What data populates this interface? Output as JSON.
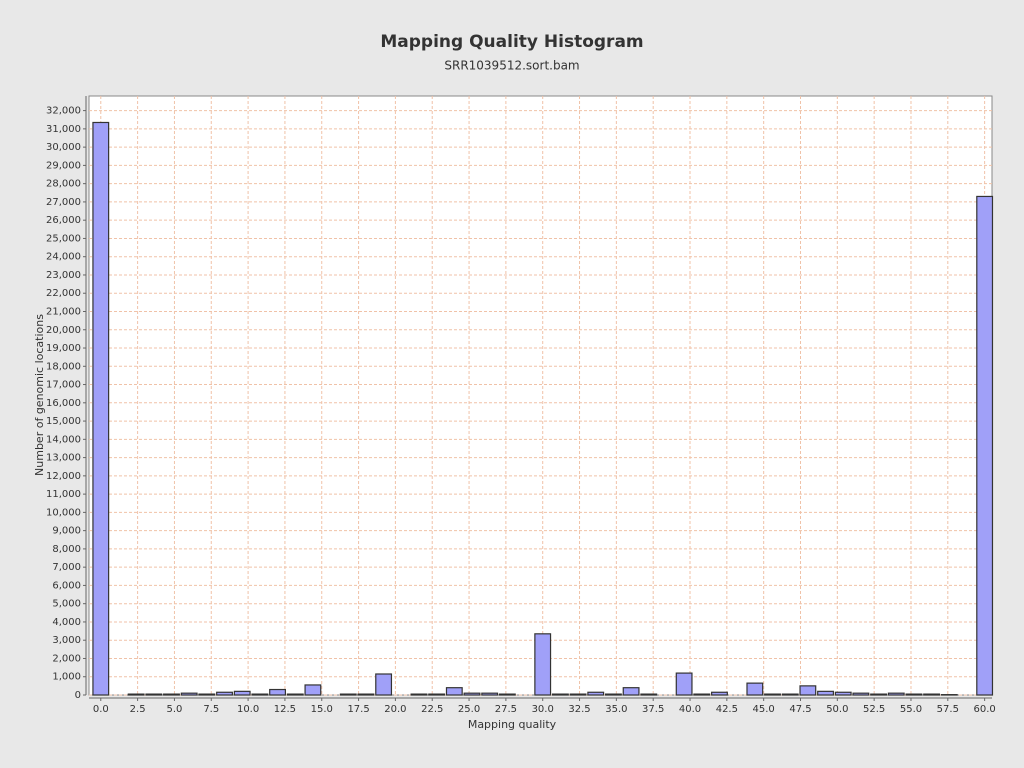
{
  "chart_data": {
    "type": "histogram",
    "title": "Mapping Quality Histogram",
    "subtitle": "SRR1039512.sort.bam",
    "x_label": "Mapping quality",
    "y_label": "Number of genomic locations",
    "color": "#a0a0f8",
    "grid": true,
    "bins": [
      -0.6,
      0.6,
      1.8,
      3.0,
      4.2,
      5.4,
      6.6,
      7.8,
      9.0,
      10.2,
      11.4,
      12.6,
      13.8,
      15.0,
      16.2,
      17.4,
      18.6,
      19.8,
      21.0,
      22.2,
      23.4,
      24.6,
      25.8,
      27.0,
      28.2,
      29.4,
      30.6,
      31.8,
      33.0,
      34.2,
      35.4,
      36.6,
      37.8,
      39.0,
      40.2,
      41.4,
      42.6,
      43.8,
      45.0,
      46.2,
      47.4,
      48.6,
      49.8,
      51.0,
      52.2,
      53.4,
      54.6,
      55.8,
      57.0,
      58.2,
      59.4,
      60.6
    ],
    "values": [
      31350,
      0,
      50,
      50,
      50,
      100,
      50,
      150,
      200,
      50,
      300,
      50,
      550,
      0,
      50,
      50,
      1150,
      0,
      50,
      50,
      400,
      100,
      100,
      50,
      0,
      3350,
      50,
      50,
      150,
      50,
      400,
      50,
      0,
      1200,
      50,
      150,
      0,
      650,
      50,
      50,
      500,
      200,
      150,
      100,
      50,
      100,
      50,
      50,
      20,
      0,
      27300
    ],
    "xlim": [
      -0.8,
      60.5
    ],
    "xticks": [
      {
        "value": 0,
        "label": "0.0"
      },
      2.5,
      {
        "value": 5,
        "label": "5.0"
      },
      7.5,
      {
        "value": 10,
        "label": "10.0"
      },
      12.5,
      {
        "value": 15,
        "label": "15.0"
      },
      17.5,
      {
        "value": 20,
        "label": "20.0"
      },
      22.5,
      {
        "value": 25,
        "label": "25.0"
      },
      27.5,
      {
        "value": 30,
        "label": "30.0"
      },
      32.5,
      {
        "value": 35,
        "label": "35.0"
      },
      37.5,
      {
        "value": 40,
        "label": "40.0"
      },
      42.5,
      {
        "value": 45,
        "label": "45.0"
      },
      47.5,
      {
        "value": 50,
        "label": "50.0"
      },
      52.5,
      {
        "value": 55,
        "label": "55.0"
      },
      57.5,
      {
        "value": 60,
        "label": "60.0"
      }
    ],
    "ylim": [
      0,
      32800
    ],
    "yticks": [
      0,
      {
        "value": 1000,
        "label": "1,000"
      },
      {
        "value": 2000,
        "label": "2,000"
      },
      {
        "value": 3000,
        "label": "3,000"
      },
      {
        "value": 4000,
        "label": "4,000"
      },
      {
        "value": 5000,
        "label": "5,000"
      },
      {
        "value": 6000,
        "label": "6,000"
      },
      {
        "value": 7000,
        "label": "7,000"
      },
      {
        "value": 8000,
        "label": "8,000"
      },
      {
        "value": 9000,
        "label": "9,000"
      },
      {
        "value": 10000,
        "label": "10,000"
      },
      {
        "value": 11000,
        "label": "11,000"
      },
      {
        "value": 12000,
        "label": "12,000"
      },
      {
        "value": 13000,
        "label": "13,000"
      },
      {
        "value": 14000,
        "label": "14,000"
      },
      {
        "value": 15000,
        "label": "15,000"
      },
      {
        "value": 16000,
        "label": "16,000"
      },
      {
        "value": 17000,
        "label": "17,000"
      },
      {
        "value": 18000,
        "label": "18,000"
      },
      {
        "value": 19000,
        "label": "19,000"
      },
      {
        "value": 20000,
        "label": "20,000"
      },
      {
        "value": 21000,
        "label": "21,000"
      },
      {
        "value": 22000,
        "label": "22,000"
      },
      {
        "value": 23000,
        "label": "23,000"
      },
      {
        "value": 24000,
        "label": "24,000"
      },
      {
        "value": 25000,
        "label": "25,000"
      },
      {
        "value": 26000,
        "label": "26,000"
      },
      {
        "value": 27000,
        "label": "27,000"
      },
      {
        "value": 28000,
        "label": "28,000"
      },
      {
        "value": 29000,
        "label": "29,000"
      },
      {
        "value": 30000,
        "label": "30,000"
      },
      {
        "value": 31000,
        "label": "31,000"
      },
      {
        "value": 32000,
        "label": "32,000"
      }
    ]
  }
}
